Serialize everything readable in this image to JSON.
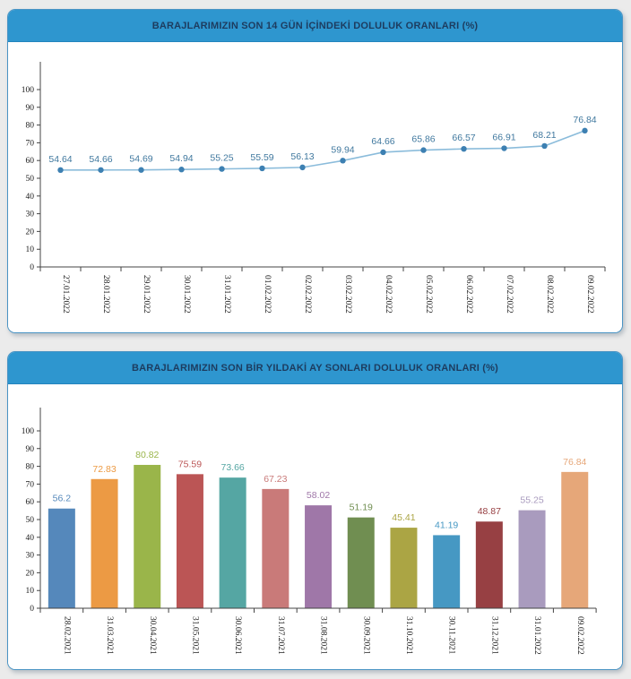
{
  "page": {
    "background": "#ebebeb",
    "panel_border": "#4a94c4",
    "header_bg": "#2e96cf",
    "title_color": "#1d3c5f"
  },
  "chart_data": [
    {
      "type": "line",
      "title": "BARAJLARIMIZIN SON 14 GÜN İÇİNDEKİ DOLULUK ORANLARI (%)",
      "categories": [
        "27.01.2022",
        "28.01.2022",
        "29.01.2022",
        "30.01.2022",
        "31.01.2022",
        "01.02.2022",
        "02.02.2022",
        "03.02.2022",
        "04.02.2022",
        "05.02.2022",
        "06.02.2022",
        "07.02.2022",
        "08.02.2022",
        "09.02.2022"
      ],
      "values": [
        54.64,
        54.66,
        54.69,
        54.94,
        55.25,
        55.59,
        56.13,
        59.94,
        64.66,
        65.86,
        66.57,
        66.91,
        68.21,
        76.84
      ],
      "xlabel": "",
      "ylabel": "",
      "ylim": [
        0,
        110
      ],
      "ytick_step": 10,
      "ytick_max": 100,
      "grid": false,
      "legend": "none",
      "line_color": "#8bbcdb",
      "marker_color": "#3d80b2",
      "value_label_color": "#41799f",
      "axis_color": "#444444",
      "tick_label_color": "#1a1a1a"
    },
    {
      "type": "bar",
      "title": "BARAJLARIMIZIN SON BİR YILDAKİ AY SONLARI DOLULUK ORANLARI (%)",
      "categories": [
        "28.02.2021",
        "31.03.2021",
        "30.04.2021",
        "31.05.2021",
        "30.06.2021",
        "31.07.2021",
        "31.08.2021",
        "30.09.2021",
        "31.10.2021",
        "30.11.2021",
        "31.12.2021",
        "31.01.2022",
        "09.02.2022"
      ],
      "values": [
        56.2,
        72.83,
        80.82,
        75.59,
        73.66,
        67.23,
        58.02,
        51.19,
        45.41,
        41.19,
        48.87,
        55.25,
        76.84
      ],
      "bar_colors": [
        "#5588bb",
        "#ec9a44",
        "#9ab54a",
        "#bb5555",
        "#55a6a3",
        "#c97a79",
        "#9f77a8",
        "#708e51",
        "#aba544",
        "#4698c3",
        "#974043",
        "#a99bbe",
        "#e6a779"
      ],
      "xlabel": "",
      "ylabel": "",
      "ylim": [
        0,
        110
      ],
      "ytick_step": 10,
      "ytick_max": 100,
      "grid": false,
      "legend": "none",
      "axis_color": "#444444",
      "tick_label_color": "#1a1a1a"
    }
  ]
}
